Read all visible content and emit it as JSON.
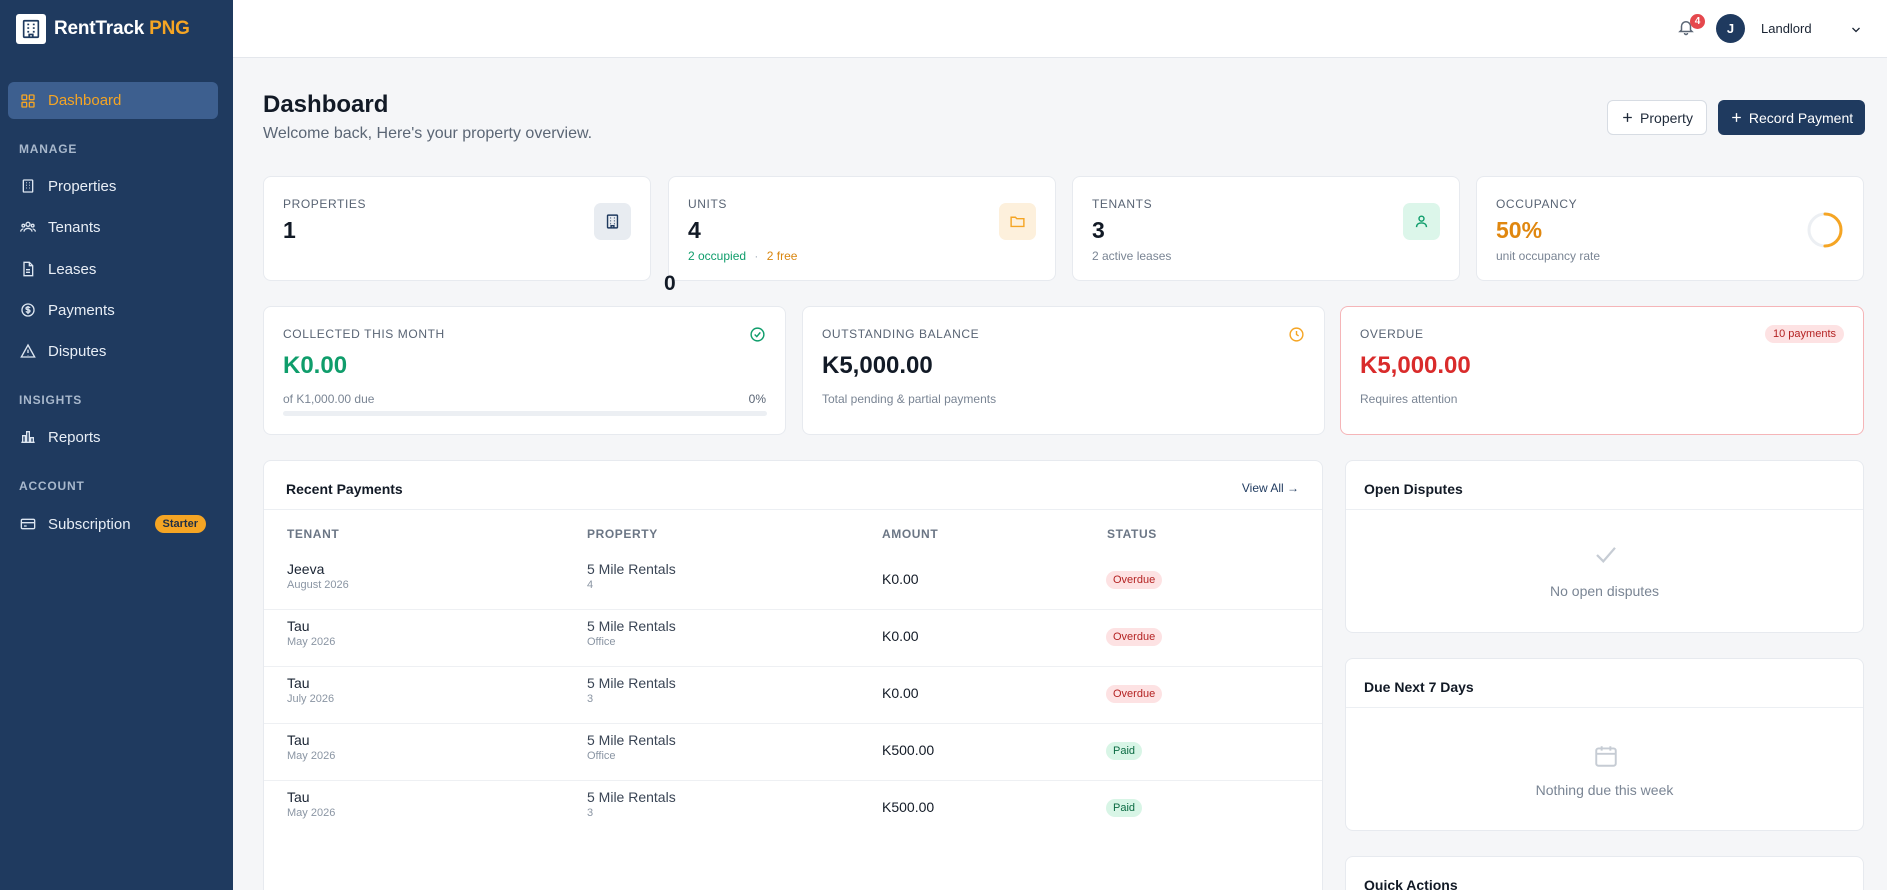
{
  "brand": {
    "name": "RentTrack",
    "accent": "PNG"
  },
  "sidebar": {
    "active": "Dashboard",
    "sections": {
      "manage": "MANAGE",
      "insights": "INSIGHTS",
      "account": "ACCOUNT"
    },
    "items": {
      "properties": "Properties",
      "tenants": "Tenants",
      "leases": "Leases",
      "payments": "Payments",
      "disputes": "Disputes",
      "reports": "Reports",
      "subscription": "Subscription"
    },
    "subscription_badge": "Starter"
  },
  "topbar": {
    "notification_count": "4",
    "avatar_initial": "J",
    "user_role": "Landlord"
  },
  "header": {
    "title": "Dashboard",
    "subtitle": "Welcome back, Here's your property overview.",
    "property_button": "Property",
    "record_payment_button": "Record Payment"
  },
  "stats": {
    "properties": {
      "label": "PROPERTIES",
      "value": "1"
    },
    "units": {
      "label": "UNITS",
      "value": "4",
      "occupied": "2 occupied",
      "separator": "·",
      "free": "2 free"
    },
    "tenants": {
      "label": "TENANTS",
      "value": "3",
      "sub": "2 active leases"
    },
    "occupancy": {
      "label": "OCCUPANCY",
      "value": "50%",
      "sub": "unit occupancy rate",
      "fraction": 0.5
    },
    "stray_value": "0"
  },
  "finance": {
    "collected": {
      "label": "COLLECTED THIS MONTH",
      "value": "K0.00",
      "sub": "of K1,000.00 due",
      "percent": "0%",
      "progress": 0
    },
    "outstanding": {
      "label": "OUTSTANDING BALANCE",
      "value": "K5,000.00",
      "sub": "Total pending & partial payments"
    },
    "overdue": {
      "label": "OVERDUE",
      "value": "K5,000.00",
      "sub": "Requires attention",
      "badge": "10 payments"
    }
  },
  "recent_payments": {
    "title": "Recent Payments",
    "view_all": "View All →",
    "columns": {
      "tenant": "TENANT",
      "property": "PROPERTY",
      "amount": "AMOUNT",
      "status": "STATUS"
    },
    "rows": [
      {
        "tenant": "Jeeva",
        "period": "August 2026",
        "property": "5 Mile Rentals",
        "unit": "4",
        "amount": "K0.00",
        "status": "Overdue"
      },
      {
        "tenant": "Tau",
        "period": "May 2026",
        "property": "5 Mile Rentals",
        "unit": "Office",
        "amount": "K0.00",
        "status": "Overdue"
      },
      {
        "tenant": "Tau",
        "period": "July 2026",
        "property": "5 Mile Rentals",
        "unit": "3",
        "amount": "K0.00",
        "status": "Overdue"
      },
      {
        "tenant": "Tau",
        "period": "May 2026",
        "property": "5 Mile Rentals",
        "unit": "Office",
        "amount": "K500.00",
        "status": "Paid"
      },
      {
        "tenant": "Tau",
        "period": "May 2026",
        "property": "5 Mile Rentals",
        "unit": "3",
        "amount": "K500.00",
        "status": "Paid"
      }
    ]
  },
  "open_disputes": {
    "title": "Open Disputes",
    "empty": "No open disputes"
  },
  "due_next": {
    "title": "Due Next 7 Days",
    "empty": "Nothing due this week"
  },
  "quick_actions": {
    "title": "Quick Actions"
  },
  "colors": {
    "sidebar": "#1f3a5f",
    "accent": "#f5a524",
    "success": "#0f9d6b",
    "danger": "#d92b2b"
  }
}
